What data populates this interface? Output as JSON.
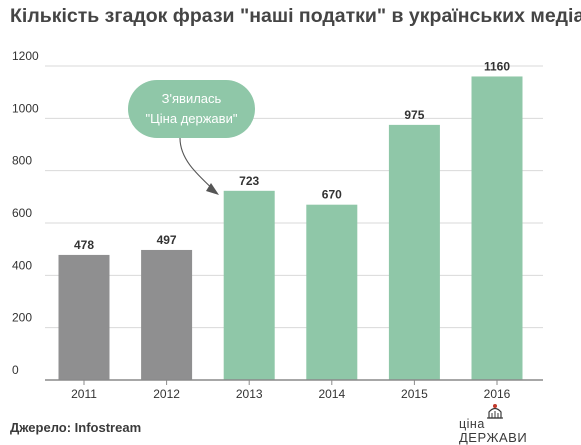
{
  "title": "Кількість згадок фрази \"наші податки\" в українських медіа",
  "source": "Джерело: Infostream",
  "logo": {
    "line1": "ціна",
    "line2": "ДЕРЖАВИ"
  },
  "colors": {
    "gray": "#8f8f90",
    "green": "#8fc7a8",
    "grid": "#d9d9d9",
    "axis": "#8a8a8a"
  },
  "callout": {
    "line1": "З'явилась",
    "line2": "\"Ціна держави\""
  },
  "chart_data": {
    "type": "bar",
    "categories": [
      "2011",
      "2012",
      "2013",
      "2014",
      "2015",
      "2016"
    ],
    "values": [
      478,
      497,
      723,
      670,
      975,
      1160
    ],
    "value_labels": [
      "478",
      "497",
      "723",
      "670",
      "975",
      "1160"
    ],
    "bar_colors": [
      "gray",
      "gray",
      "green",
      "green",
      "green",
      "green"
    ],
    "ylim": [
      0,
      1200
    ],
    "yticks": [
      0,
      200,
      400,
      600,
      800,
      1000,
      1200
    ],
    "ytick_labels": [
      "0",
      "200",
      "400",
      "600",
      "800",
      "1000",
      "1200"
    ],
    "grid": true
  }
}
